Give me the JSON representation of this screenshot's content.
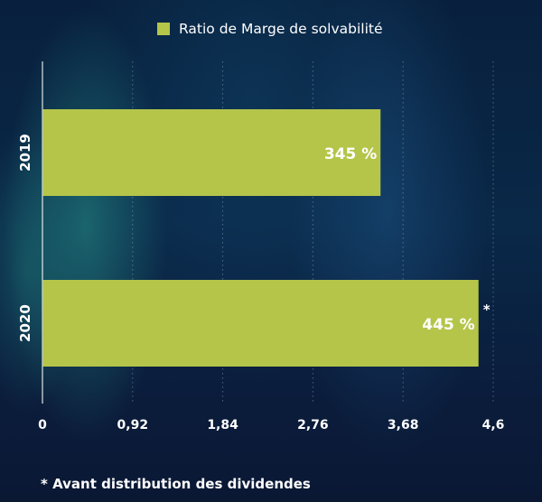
{
  "chart_data": {
    "type": "bar",
    "orientation": "horizontal",
    "categories": [
      "2019",
      "2020"
    ],
    "series": [
      {
        "name": "Ratio de Marge de solvabilité",
        "values": [
          3.45,
          4.45
        ]
      }
    ],
    "data_labels": [
      "345 %",
      "445 %"
    ],
    "annotations": [
      {
        "category": "2020",
        "text": "*"
      }
    ],
    "x_ticks": [
      0,
      0.92,
      1.84,
      2.76,
      3.68,
      4.6
    ],
    "x_tick_labels": [
      "0",
      "0,92",
      "1,84",
      "2,76",
      "3,68",
      "4,6"
    ],
    "xlim": [
      0,
      4.6
    ],
    "grid": true,
    "legend_position": "top",
    "bar_color": "#b4c549",
    "text_color": "#ffffff"
  },
  "footnote": "* Avant distribution des dividendes"
}
